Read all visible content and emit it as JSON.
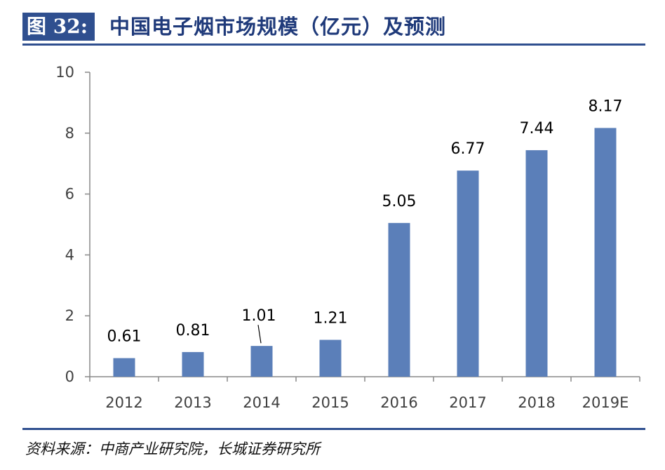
{
  "header": {
    "figure_label": "图 32:",
    "title": "中国电子烟市场规模（亿元）及预测"
  },
  "source": "资料来源：中商产业研究院，长城证券研究所",
  "colors": {
    "bar": "#5b7fb9",
    "accent": "#2f4f8f",
    "title": "#1f3a7a"
  },
  "chart_data": {
    "type": "bar",
    "categories": [
      "2012",
      "2013",
      "2014",
      "2015",
      "2016",
      "2017",
      "2018",
      "2019E"
    ],
    "values": [
      0.61,
      0.81,
      1.01,
      1.21,
      5.05,
      6.77,
      7.44,
      8.17
    ],
    "data_labels": [
      "0.61",
      "0.81",
      "1.01",
      "1.21",
      "5.05",
      "6.77",
      "7.44",
      "8.17"
    ],
    "ylim": [
      0,
      10
    ],
    "yticks": [
      0,
      2,
      4,
      6,
      8,
      10
    ],
    "ytick_labels": [
      "0",
      "2",
      "4",
      "6",
      "8",
      "10"
    ],
    "title": "",
    "xlabel": "",
    "ylabel": "",
    "grid": false,
    "legend": false
  }
}
